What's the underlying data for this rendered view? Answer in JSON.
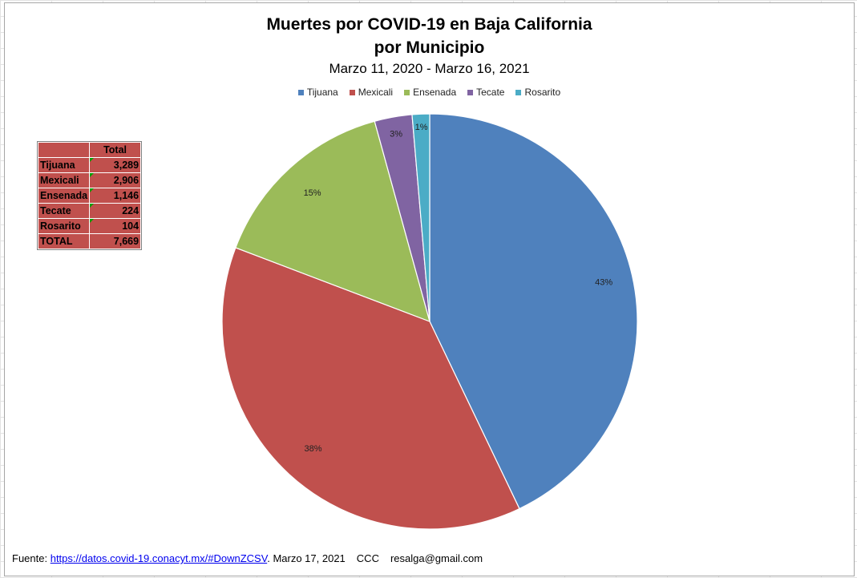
{
  "chart_data": {
    "type": "pie",
    "title": "Muertes por COVID-19 en Baja California",
    "title_line2": "por Municipio",
    "subtitle": "Marzo 11, 2020 - Marzo 16, 2021",
    "legend_position": "top",
    "categories": [
      "Tijuana",
      "Mexicali",
      "Ensenada",
      "Tecate",
      "Rosarito"
    ],
    "values": [
      3289,
      2906,
      1146,
      224,
      104
    ],
    "percent_labels": [
      "43%",
      "38%",
      "15%",
      "3%",
      "1%"
    ],
    "colors": [
      "#4f81bd",
      "#c0504d",
      "#9bbb59",
      "#8064a2",
      "#4bacc6"
    ]
  },
  "table": {
    "header": "Total",
    "rows": [
      {
        "name": "Tijuana",
        "value": "3,289"
      },
      {
        "name": "Mexicali",
        "value": "2,906"
      },
      {
        "name": "Ensenada",
        "value": "1,146"
      },
      {
        "name": "Tecate",
        "value": "224"
      },
      {
        "name": "Rosarito",
        "value": "104"
      }
    ],
    "total_label": "TOTAL",
    "total_value": "7,669"
  },
  "footer": {
    "prefix": "Fuente:",
    "link": "https://datos.covid-19.conacyt.mx/#DownZCSV",
    "suffix": ".",
    "date": "Marzo 17, 2021",
    "initials": "CCC",
    "email": "resalga@gmail.com"
  }
}
